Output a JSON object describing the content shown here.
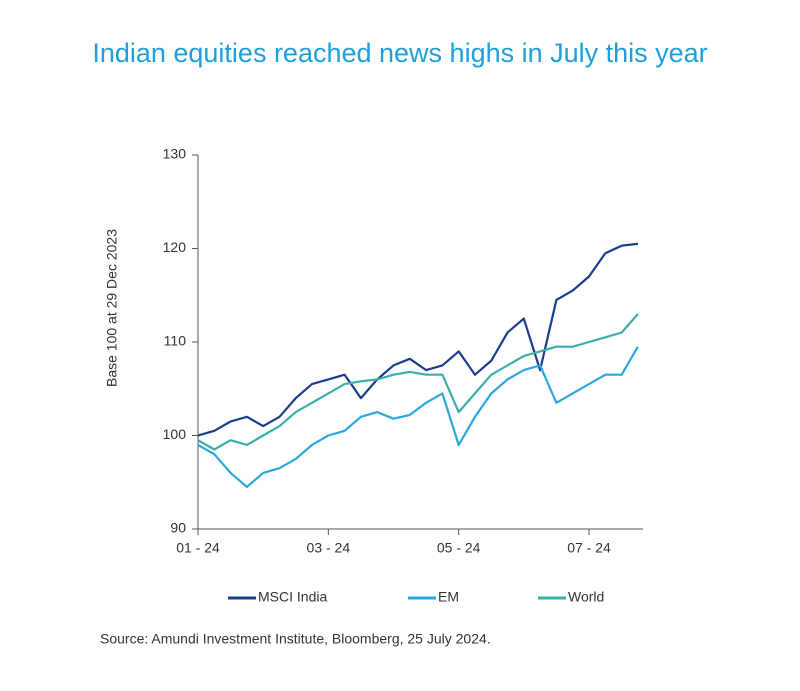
{
  "chart_data": {
    "type": "line",
    "title": "Indian equities reached news highs in July this year",
    "y_label": "Base 100 at 29 Dec 2023",
    "source": "Source: Amundi Investment Institute,  Bloomberg, 25 July 2024.",
    "categories": [
      "01 - 24",
      null,
      null,
      null,
      null,
      null,
      null,
      null,
      "03 - 24",
      null,
      null,
      null,
      null,
      null,
      null,
      null,
      "05 - 24",
      null,
      null,
      null,
      null,
      null,
      null,
      null,
      "07 - 24",
      null,
      null,
      null
    ],
    "series": [
      {
        "name": "MSCI India",
        "color": "#1a3c8c",
        "values": [
          100,
          100.5,
          101.5,
          102,
          101,
          102,
          104,
          105.5,
          106,
          106.5,
          104,
          106,
          107.5,
          108.2,
          107,
          107.5,
          109,
          106.5,
          108,
          111,
          112.5,
          107,
          114.5,
          115.5,
          117,
          119.5,
          120.3,
          120.5
        ]
      },
      {
        "name": "EM",
        "color": "#2aa7df",
        "values": [
          99,
          98,
          96,
          94.5,
          96,
          96.5,
          97.5,
          99,
          100,
          100.5,
          102,
          102.5,
          101.8,
          102.2,
          103.5,
          104.5,
          99,
          102,
          104.5,
          106,
          107,
          107.5,
          103.5,
          104.5,
          105.5,
          106.5,
          106.5,
          109.5
        ]
      },
      {
        "name": "World",
        "color": "#3aafa9",
        "values": [
          99.5,
          98.5,
          99.5,
          99,
          100,
          101,
          102.5,
          103.5,
          104.5,
          105.5,
          105.8,
          106,
          106.5,
          106.8,
          106.5,
          106.5,
          102.5,
          104.5,
          106.5,
          107.5,
          108.5,
          109,
          109.5,
          109.5,
          110,
          110.5,
          111,
          113
        ]
      }
    ],
    "ylim": [
      90,
      130
    ],
    "yticks": [
      90,
      100,
      110,
      120,
      130
    ],
    "grid": false,
    "legend": "bottom"
  }
}
